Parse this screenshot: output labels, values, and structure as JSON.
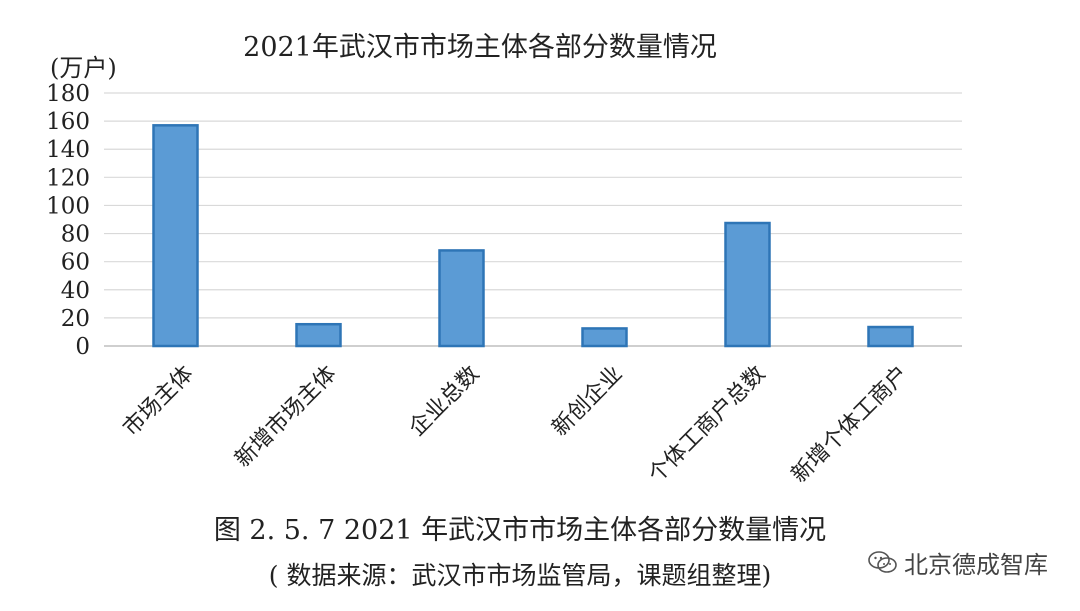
{
  "chart_data": {
    "type": "bar",
    "title": "2021年武汉市市场主体各部分数量情况",
    "ylabel": "(万户)",
    "xlabel": "",
    "categories": [
      "市场主体",
      "新增市场主体",
      "企业总数",
      "新创企业",
      "个体工商户总数",
      "新增个体工商户"
    ],
    "values": [
      157,
      15.5,
      68,
      12.5,
      87.5,
      13.5
    ],
    "ylim": [
      0,
      180
    ],
    "yticks": [
      0,
      20,
      40,
      60,
      80,
      100,
      120,
      140,
      160,
      180
    ],
    "grid": true,
    "legend": "none",
    "bar_color": "#5b9bd5",
    "bar_edge_color": "#2e75b6",
    "grid_color": "#d9d9d9"
  },
  "caption": {
    "figure": "图 2. 5. 7    2021 年武汉市市场主体各部分数量情况",
    "source": "( 数据来源：武汉市市场监管局，课题组整理)"
  },
  "watermark": {
    "text": "北京德成智库",
    "icon": "wechat-icon"
  }
}
